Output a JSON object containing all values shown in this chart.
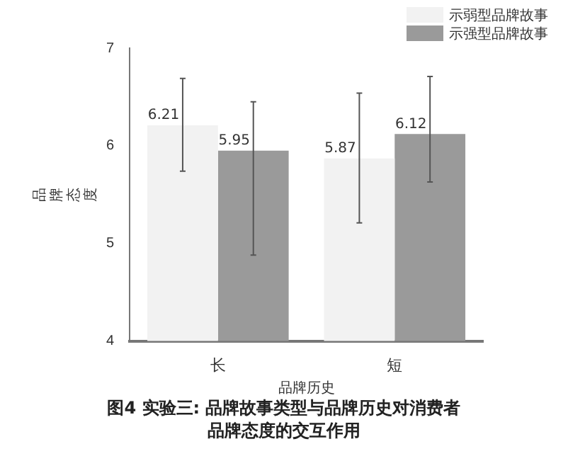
{
  "chart_data": {
    "type": "bar",
    "xlabel": "品牌历史",
    "ylabel": "品牌态度",
    "categories": [
      "长",
      "短"
    ],
    "series": [
      {
        "name": "示弱型品牌故事",
        "color": "#f2f2f2",
        "values": [
          6.21,
          5.87
        ],
        "errors": [
          [
            5.74,
            6.69
          ],
          [
            5.21,
            6.54
          ]
        ]
      },
      {
        "name": "示强型品牌故事",
        "color": "#9a9a9a",
        "values": [
          5.95,
          6.12
        ],
        "errors": [
          [
            4.88,
            6.45
          ],
          [
            5.63,
            6.71
          ]
        ]
      }
    ],
    "ylim": [
      4,
      7
    ],
    "yticks": [
      4,
      5,
      6,
      7
    ],
    "grid": false,
    "legend": "top right",
    "data_labels": true,
    "annotations": [
      "图4  实验三: 品牌故事类型与品牌历史对消费者品牌态度的交互作用"
    ]
  }
}
